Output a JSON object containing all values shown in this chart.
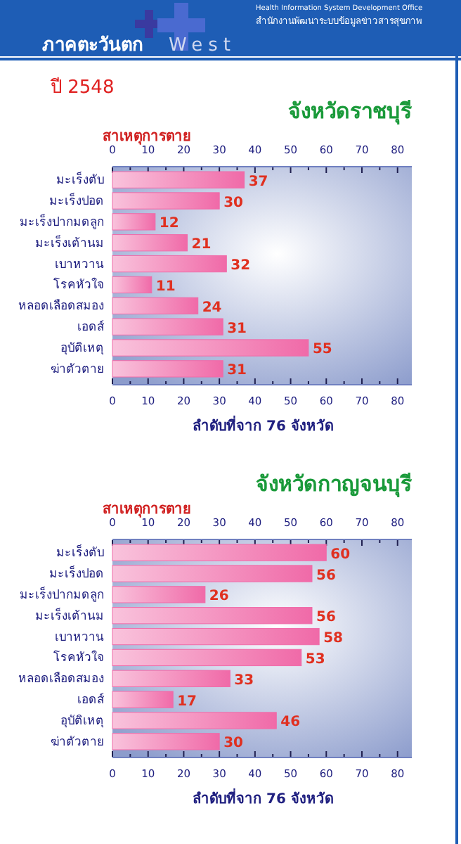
{
  "chart_data": [
    {
      "type": "bar",
      "orientation": "horizontal",
      "title": "จังหวัดราชบุรี",
      "ylabel": "สาเหตุการตาย",
      "xlabel": "ลำดับที่จาก 76 จังหวัด",
      "annotations": [
        "ภาคตะวันตก",
        "West",
        "Health Information System Development Office",
        "สำนักงานพัฒนาระบบข้อมูลข่าวสารสุขภาพ",
        "ปี 2548"
      ],
      "categories": [
        "มะเร็งตับ",
        "มะเร็งปอด",
        "มะเร็งปากมดลูก",
        "มะเร็งเต้านม",
        "เบาหวาน",
        "โรคหัวใจ",
        "หลอดเลือดสมอง",
        "เอดส์",
        "อุบัติเหตุ",
        "ฆ่าตัวตาย"
      ],
      "values": [
        37,
        30,
        12,
        21,
        32,
        11,
        24,
        31,
        55,
        31
      ],
      "color": "#f06aa8",
      "data_labels": true,
      "xlim": [
        0,
        84
      ],
      "xticks": [
        0,
        {
          "value": 5,
          "label": null
        },
        10,
        {
          "value": 15,
          "label": null
        },
        20,
        {
          "value": 25,
          "label": null
        },
        30,
        {
          "value": 35,
          "label": null
        },
        40,
        {
          "value": 45,
          "label": null
        },
        50,
        {
          "value": 55,
          "label": null
        },
        60,
        {
          "value": 65,
          "label": null
        },
        70,
        {
          "value": 75,
          "label": null
        },
        80
      ],
      "x2lim": [
        0,
        84
      ],
      "x2ticks": [
        0,
        {
          "value": 5,
          "label": null
        },
        10,
        {
          "value": 15,
          "label": null
        },
        20,
        {
          "value": 25,
          "label": null
        },
        30,
        {
          "value": 35,
          "label": null
        },
        40,
        {
          "value": 45,
          "label": null
        },
        50,
        {
          "value": 55,
          "label": null
        },
        60,
        {
          "value": 65,
          "label": null
        },
        70,
        {
          "value": 75,
          "label": null
        },
        80
      ]
    },
    {
      "type": "bar",
      "orientation": "horizontal",
      "title": "จังหวัดกาญจนบุรี",
      "ylabel": "สาเหตุการตาย",
      "xlabel": "ลำดับที่จาก 76 จังหวัด",
      "categories": [
        "มะเร็งตับ",
        "มะเร็งปอด",
        "มะเร็งปากมดลูก",
        "มะเร็งเต้านม",
        "เบาหวาน",
        "โรคหัวใจ",
        "หลอดเลือดสมอง",
        "เอดส์",
        "อุบัติเหตุ",
        "ฆ่าตัวตาย"
      ],
      "values": [
        60,
        56,
        26,
        56,
        58,
        53,
        33,
        17,
        46,
        30
      ],
      "color": "#f06aa8",
      "data_labels": true,
      "xlim": [
        0,
        84
      ],
      "xticks": [
        0,
        {
          "value": 5,
          "label": null
        },
        10,
        {
          "value": 15,
          "label": null
        },
        20,
        {
          "value": 25,
          "label": null
        },
        30,
        {
          "value": 35,
          "label": null
        },
        40,
        {
          "value": 45,
          "label": null
        },
        50,
        {
          "value": 55,
          "label": null
        },
        60,
        {
          "value": 65,
          "label": null
        },
        70,
        {
          "value": 75,
          "label": null
        },
        80
      ],
      "x2lim": [
        0,
        84
      ],
      "x2ticks": [
        0,
        {
          "value": 5,
          "label": null
        },
        10,
        {
          "value": 15,
          "label": null
        },
        20,
        {
          "value": 25,
          "label": null
        },
        30,
        {
          "value": 35,
          "label": null
        },
        40,
        {
          "value": 45,
          "label": null
        },
        50,
        {
          "value": 55,
          "label": null
        },
        60,
        {
          "value": 65,
          "label": null
        },
        70,
        {
          "value": 75,
          "label": null
        },
        80
      ]
    }
  ]
}
